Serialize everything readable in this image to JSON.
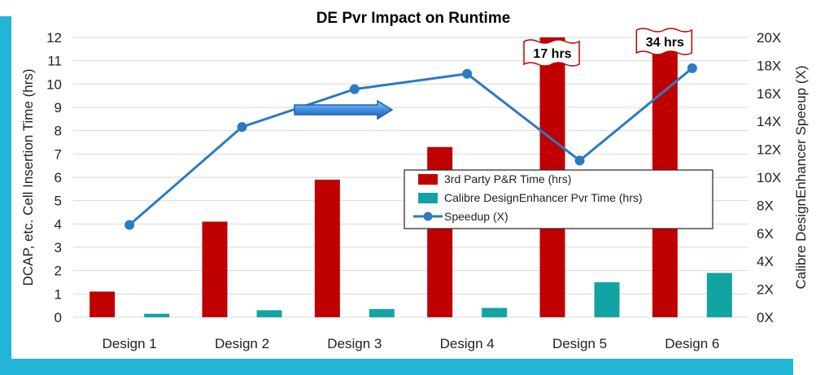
{
  "colors": {
    "frame": "#21b6d8",
    "bar_pr": "#c00000",
    "bar_de": "#12a3a3",
    "line": "#2a7bc0",
    "arrow": "#3d8ee0"
  },
  "chart_data": {
    "type": "bar",
    "title": "DE Pvr Impact on Runtime",
    "ylabel": "DCAP, etc. Cell Insertion Time (hrs)",
    "y2label": "Calibre DesignEnhancer Speeup (X)",
    "categories": [
      "Design 1",
      "Design 2",
      "Design 3",
      "Design 4",
      "Design 5",
      "Design 6"
    ],
    "ylim": [
      0,
      12
    ],
    "y2lim": [
      0,
      20
    ],
    "y_ticks": [
      "0",
      "1",
      "2",
      "3",
      "4",
      "5",
      "6",
      "7",
      "8",
      "9",
      "10",
      "11",
      "12"
    ],
    "y2_ticks": [
      "0X",
      "2X",
      "4X",
      "6X",
      "8X",
      "10X",
      "12X",
      "14X",
      "16X",
      "18X",
      "20X"
    ],
    "series": [
      {
        "name": "3rd Party P&R Time (hrs)",
        "type": "bar",
        "axis": "left",
        "values": [
          1.1,
          4.1,
          5.9,
          7.3,
          12,
          12
        ]
      },
      {
        "name": "Calibre DesignEnhancer Pvr Time (hrs)",
        "type": "bar",
        "axis": "left",
        "values": [
          0.15,
          0.3,
          0.35,
          0.4,
          1.5,
          1.9
        ]
      },
      {
        "name": "Speedup (X)",
        "type": "line",
        "axis": "right",
        "values": [
          6.6,
          13.6,
          16.3,
          17.4,
          11.2,
          17.8
        ]
      }
    ],
    "annotations": [
      {
        "category": "Design 5",
        "text": "17 hrs"
      },
      {
        "category": "Design 6",
        "text": "34 hrs"
      }
    ],
    "grid": true,
    "legend_position": "center-right"
  }
}
